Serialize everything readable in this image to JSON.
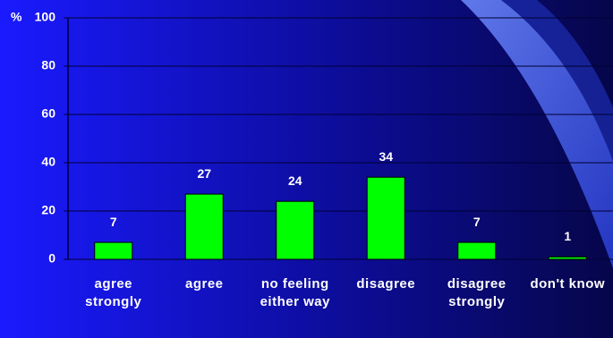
{
  "chart_data": {
    "type": "bar",
    "y_axis_label": "%",
    "categories": [
      "agree strongly",
      "agree",
      "no feeling either way",
      "disagree",
      "disagree strongly",
      "don't know"
    ],
    "values": [
      7,
      27,
      24,
      34,
      7,
      1
    ],
    "color": "#00ff00",
    "ylim": [
      0,
      100
    ],
    "yticks": [
      0,
      20,
      40,
      60,
      80,
      100
    ],
    "grid": true
  }
}
